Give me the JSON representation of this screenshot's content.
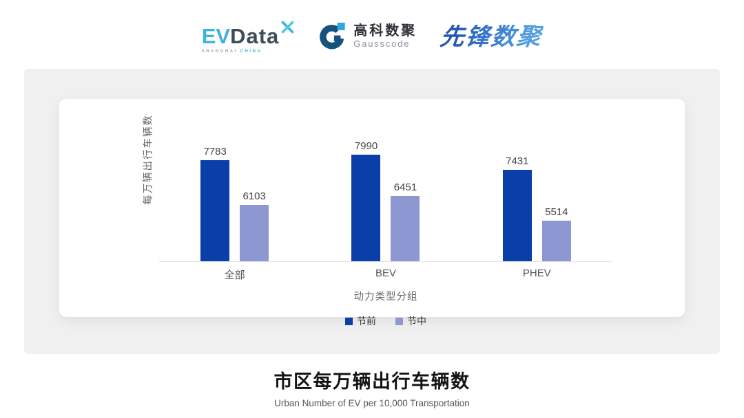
{
  "header": {
    "evdata": {
      "part1": "EV",
      "part2": "Data",
      "tagline_left": "SHANGHAI",
      "tagline_right": "CHINA"
    },
    "gausscode": {
      "name_cn": "高科数聚",
      "name_en": "Gausscode"
    },
    "pioneer": {
      "name": "先锋数聚"
    }
  },
  "chart_data": {
    "type": "bar",
    "categories": [
      "全部",
      "BEV",
      "PHEV"
    ],
    "series": [
      {
        "name": "节前",
        "color": "#0A3EA9",
        "values": [
          7783,
          7990,
          7431
        ]
      },
      {
        "name": "节中",
        "color": "#8D97D2",
        "values": [
          6103,
          6451,
          5514
        ]
      }
    ],
    "xlabel": "动力类型分组",
    "ylabel": "每万辆出行车辆数",
    "ylim": [
      4000,
      8500
    ],
    "grid": false,
    "value_labels": true,
    "legend_position": "bottom",
    "title": "市区每万辆出行车辆数",
    "subtitle": "Urban Number of EV per 10,000 Transportation"
  }
}
